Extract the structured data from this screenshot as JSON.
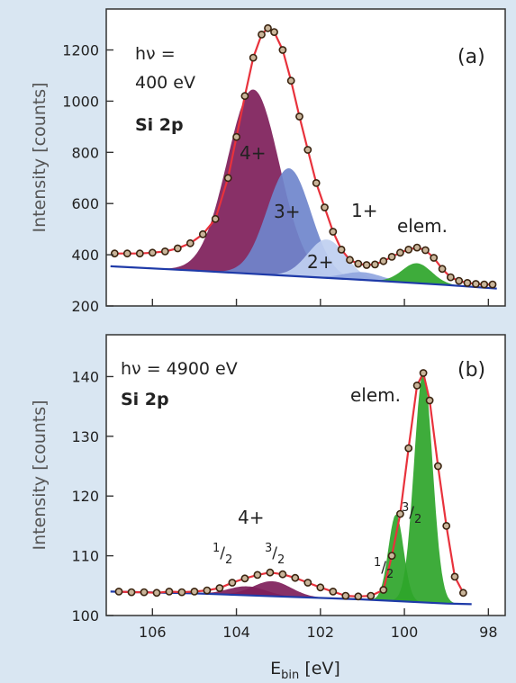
{
  "chart_data": [
    {
      "id": "a",
      "type": "area",
      "panel_label": "(a)",
      "annotation": {
        "line1": "hν =",
        "line2": "400 eV",
        "line3": "Si 2p"
      },
      "ylabel": "Intensity [counts]",
      "xlim": [
        107.1,
        97.6
      ],
      "ylim": [
        200,
        1360
      ],
      "yticks": [
        200,
        400,
        600,
        800,
        1000,
        1200
      ],
      "xticks": [
        106,
        104,
        102,
        100,
        98
      ],
      "grid": false,
      "legend": "none",
      "background": {
        "name": "background",
        "color": "#1e3aa8",
        "x": [
          107.0,
          105,
          103,
          101,
          99,
          97.8
        ],
        "y": [
          355,
          338,
          320,
          302,
          282,
          268
        ]
      },
      "components": [
        {
          "label": "4+",
          "center": 103.6,
          "amplitude": 720,
          "sigma": 0.62,
          "color": "#7e1e5a"
        },
        {
          "label": "3+",
          "center": 102.75,
          "amplitude": 420,
          "sigma": 0.52,
          "color": "#6f86cc"
        },
        {
          "label": "2+",
          "center": 101.85,
          "amplitude": 150,
          "sigma": 0.45,
          "color": "#bfcff0"
        },
        {
          "label": "1+",
          "center": 101.0,
          "amplitude": 30,
          "sigma": 0.45,
          "color": "#90a6df"
        },
        {
          "label": "elem.",
          "center": 99.7,
          "amplitude": 78,
          "sigma": 0.35,
          "color": "#2ea52a"
        }
      ],
      "fit": {
        "name": "fit",
        "color": "#e8323c"
      },
      "data_points": {
        "name": "data",
        "x": [
          106.9,
          106.6,
          106.3,
          106.0,
          105.7,
          105.4,
          105.1,
          104.8,
          104.5,
          104.2,
          104.0,
          103.8,
          103.6,
          103.4,
          103.25,
          103.1,
          102.9,
          102.7,
          102.5,
          102.3,
          102.1,
          101.9,
          101.7,
          101.5,
          101.3,
          101.1,
          100.9,
          100.7,
          100.5,
          100.3,
          100.1,
          99.9,
          99.7,
          99.5,
          99.3,
          99.1,
          98.9,
          98.7,
          98.5,
          98.3,
          98.1,
          97.9
        ],
        "y": [
          405,
          405,
          405,
          408,
          413,
          425,
          445,
          480,
          540,
          700,
          860,
          1020,
          1170,
          1260,
          1285,
          1270,
          1200,
          1080,
          940,
          810,
          680,
          585,
          490,
          420,
          380,
          365,
          360,
          362,
          375,
          392,
          408,
          420,
          428,
          418,
          388,
          345,
          312,
          298,
          290,
          286,
          284,
          284
        ]
      }
    },
    {
      "id": "b",
      "type": "area",
      "panel_label": "(b)",
      "annotation": {
        "line1": "hν = 4900 eV",
        "line2": "Si 2p"
      },
      "ylabel": "Intensity [counts]",
      "xlabel_main": "E",
      "xlabel_sub": "bin",
      "xlabel_unit": " [eV]",
      "xlim": [
        107.1,
        97.6
      ],
      "ylim": [
        100,
        147
      ],
      "yticks": [
        100,
        110,
        120,
        130,
        140
      ],
      "xticks": [
        106,
        104,
        102,
        100,
        98
      ],
      "grid": false,
      "legend": "none",
      "background": {
        "name": "background",
        "color": "#1e3aa8",
        "x": [
          107.0,
          105,
          103,
          101,
          99,
          98.4
        ],
        "y": [
          104.0,
          103.7,
          103.2,
          102.7,
          102.0,
          101.9
        ]
      },
      "components": [
        {
          "label": "4+ 1/2",
          "center": 103.75,
          "amplitude": 1.5,
          "sigma": 0.45,
          "color": "#7e1e5a"
        },
        {
          "label": "4+ 3/2",
          "center": 103.15,
          "amplitude": 2.5,
          "sigma": 0.45,
          "color": "#7e1e5a"
        },
        {
          "label": "elem. 1/2",
          "center": 100.2,
          "amplitude": 14.5,
          "sigma": 0.18,
          "color": "#2ea52a"
        },
        {
          "label": "elem. 3/2",
          "center": 99.55,
          "amplitude": 38.5,
          "sigma": 0.22,
          "color": "#2ea52a"
        }
      ],
      "fit": {
        "name": "fit",
        "color": "#e8323c"
      },
      "data_points": {
        "name": "data",
        "x": [
          106.8,
          106.5,
          106.2,
          105.9,
          105.6,
          105.3,
          105.0,
          104.7,
          104.4,
          104.1,
          103.8,
          103.5,
          103.2,
          102.9,
          102.6,
          102.3,
          102.0,
          101.7,
          101.4,
          101.1,
          100.8,
          100.5,
          100.3,
          100.1,
          99.9,
          99.7,
          99.55,
          99.4,
          99.2,
          99.0,
          98.8,
          98.6
        ],
        "y": [
          104.0,
          103.9,
          103.9,
          103.8,
          104.0,
          103.9,
          104.0,
          104.2,
          104.6,
          105.5,
          106.2,
          106.8,
          107.2,
          106.9,
          106.3,
          105.5,
          104.7,
          104.0,
          103.3,
          103.2,
          103.3,
          104.3,
          110.0,
          117.0,
          128.0,
          138.5,
          140.6,
          136.0,
          125.0,
          115.0,
          106.5,
          103.8
        ]
      },
      "labels": {
        "group_4": "4+",
        "j12": {
          "num": "1",
          "den": "2"
        },
        "j32": {
          "num": "3",
          "den": "2"
        },
        "elem": "elem.",
        "elem_j12": {
          "num": "1",
          "den": "2"
        },
        "elem_j32": {
          "num": "3",
          "den": "2"
        }
      }
    }
  ]
}
